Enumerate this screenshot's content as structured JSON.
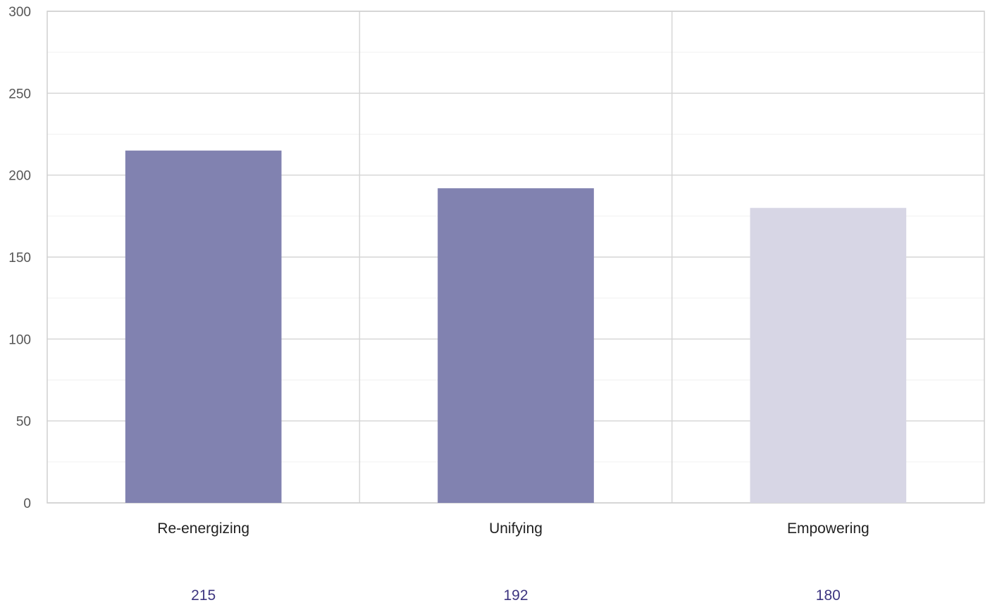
{
  "chart_data": {
    "type": "bar",
    "categories": [
      "Re-energizing",
      "Unifying",
      "Empowering"
    ],
    "values": [
      215,
      192,
      180
    ],
    "value_labels": [
      "215",
      "192",
      "180"
    ],
    "bar_colors": [
      "#8182b0",
      "#8182b0",
      "#d7d6e5"
    ],
    "value_label_color": "#3d3580",
    "title": "",
    "xlabel": "",
    "ylabel": "",
    "ylim": [
      0,
      300
    ],
    "yticks": [
      0,
      50,
      100,
      150,
      200,
      250,
      300
    ],
    "ytick_labels": [
      "0",
      "50",
      "100",
      "150",
      "200",
      "250",
      "300"
    ],
    "minor_ytick_step": 25,
    "grid": true,
    "legend": "none"
  }
}
